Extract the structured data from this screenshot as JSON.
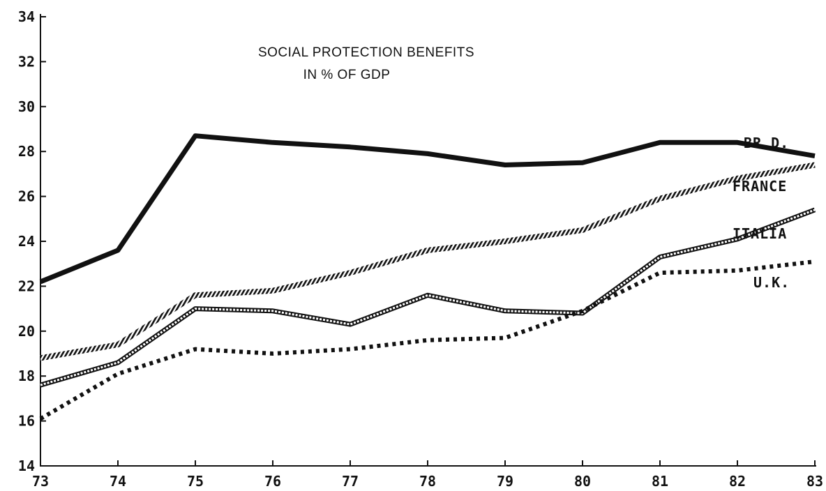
{
  "chart_data": {
    "type": "line",
    "title_lines": [
      "SOCIAL PROTECTION BENEFITS",
      "IN % OF GDP"
    ],
    "xlabel": "",
    "ylabel": "",
    "x": [
      "73",
      "74",
      "75",
      "76",
      "77",
      "78",
      "79",
      "80",
      "81",
      "82",
      "83"
    ],
    "ylim": [
      14,
      34
    ],
    "yticks": [
      "14",
      "16",
      "18",
      "20",
      "22",
      "24",
      "26",
      "28",
      "30",
      "32",
      "34"
    ],
    "grid": false,
    "series": [
      {
        "name": "BR.D.",
        "style": "solid",
        "color": "#111111",
        "values": [
          22.2,
          23.6,
          28.7,
          28.4,
          28.2,
          27.9,
          27.4,
          27.5,
          28.4,
          28.4,
          27.8
        ]
      },
      {
        "name": "FRANCE",
        "style": "hatched",
        "color": "#111111",
        "values": [
          18.8,
          19.4,
          21.6,
          21.8,
          22.6,
          23.6,
          24.0,
          24.5,
          25.9,
          26.8,
          27.4
        ]
      },
      {
        "name": "ITALIA",
        "style": "double",
        "color": "#111111",
        "values": [
          17.6,
          18.6,
          21.0,
          20.9,
          20.3,
          21.6,
          20.9,
          20.8,
          23.3,
          24.1,
          25.4
        ]
      },
      {
        "name": "U.K.",
        "style": "dashed",
        "color": "#111111",
        "values": [
          16.1,
          18.1,
          19.2,
          19.0,
          19.2,
          19.6,
          19.7,
          20.9,
          22.6,
          22.7,
          23.1
        ]
      }
    ]
  }
}
